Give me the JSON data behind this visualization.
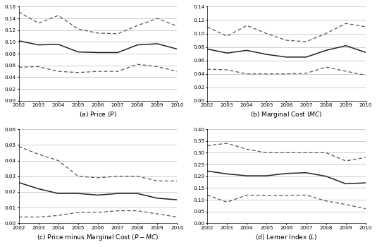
{
  "years": [
    2002,
    2003,
    2004,
    2005,
    2006,
    2007,
    2008,
    2009,
    2010
  ],
  "price": {
    "mean": [
      0.102,
      0.095,
      0.096,
      0.083,
      0.082,
      0.082,
      0.095,
      0.097,
      0.088
    ],
    "upper": [
      0.151,
      0.132,
      0.145,
      0.122,
      0.115,
      0.114,
      0.128,
      0.14,
      0.127
    ],
    "lower": [
      0.057,
      0.058,
      0.05,
      0.048,
      0.05,
      0.05,
      0.062,
      0.058,
      0.05
    ]
  },
  "mc": {
    "mean": [
      0.077,
      0.071,
      0.075,
      0.069,
      0.065,
      0.065,
      0.075,
      0.082,
      0.072
    ],
    "upper": [
      0.11,
      0.096,
      0.112,
      0.1,
      0.09,
      0.088,
      0.1,
      0.115,
      0.11
    ],
    "lower": [
      0.047,
      0.046,
      0.04,
      0.04,
      0.04,
      0.041,
      0.05,
      0.044,
      0.038
    ]
  },
  "pmc": {
    "mean": [
      0.026,
      0.022,
      0.019,
      0.019,
      0.018,
      0.019,
      0.019,
      0.016,
      0.015
    ],
    "upper": [
      0.049,
      0.044,
      0.04,
      0.03,
      0.029,
      0.03,
      0.03,
      0.027,
      0.027
    ],
    "lower": [
      0.004,
      0.004,
      0.005,
      0.007,
      0.007,
      0.008,
      0.008,
      0.006,
      0.004
    ]
  },
  "lerner": {
    "mean": [
      0.222,
      0.21,
      0.202,
      0.202,
      0.212,
      0.215,
      0.2,
      0.168,
      0.172
    ],
    "upper": [
      0.33,
      0.34,
      0.315,
      0.3,
      0.3,
      0.3,
      0.3,
      0.265,
      0.28
    ],
    "lower": [
      0.12,
      0.09,
      0.12,
      0.118,
      0.118,
      0.12,
      0.095,
      0.08,
      0.062
    ]
  },
  "ylims": {
    "price": [
      0.0,
      0.16
    ],
    "mc": [
      0.0,
      0.14
    ],
    "pmc": [
      0.0,
      0.06
    ],
    "lerner": [
      0.0,
      0.4
    ]
  },
  "yticks": {
    "price": [
      0.0,
      0.02,
      0.04,
      0.06,
      0.08,
      0.1,
      0.12,
      0.14,
      0.16
    ],
    "mc": [
      0.0,
      0.02,
      0.04,
      0.06,
      0.08,
      0.1,
      0.12,
      0.14
    ],
    "pmc": [
      0.0,
      0.01,
      0.02,
      0.03,
      0.04,
      0.05,
      0.06
    ],
    "lerner": [
      0.0,
      0.05,
      0.1,
      0.15,
      0.2,
      0.25,
      0.3,
      0.35,
      0.4
    ]
  },
  "captions": [
    "(a) Price $(P)$",
    "(b) Marginal Cost $(MC)$",
    "(c) Price minus Marginal Cost $(P - MC)$",
    "(d) Lerner Index $(L)$"
  ],
  "line_color": "#222222",
  "dash_color": "#555555",
  "bg_color": "#ffffff",
  "grid_color": "#bbbbbb"
}
